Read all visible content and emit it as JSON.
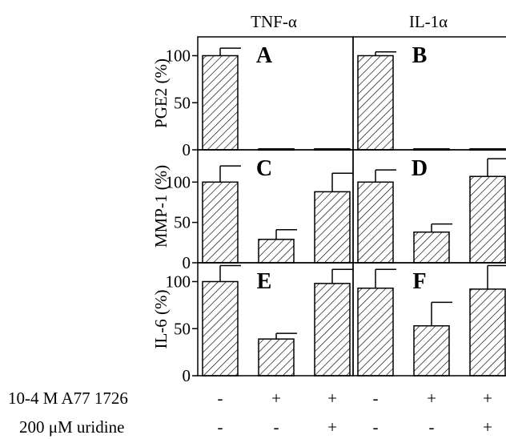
{
  "chart_data": {
    "type": "bar",
    "columns": [
      "TNF-α",
      "IL-1α"
    ],
    "treatments": [
      {
        "label": "10-4 M A77 1726",
        "signs": [
          "-",
          "+",
          "+",
          "-",
          "+",
          "+"
        ]
      },
      {
        "label": "200 μM uridine",
        "signs": [
          "-",
          "-",
          "+",
          "-",
          "-",
          "+"
        ]
      }
    ],
    "rows": [
      {
        "ylabel": "PGE2 (%)",
        "ylim": [
          0,
          120
        ],
        "yticks": [
          0,
          50,
          100
        ],
        "panels": [
          {
            "letter": "A",
            "column": "TNF-α",
            "values": [
              100,
              1,
              1
            ],
            "errors": [
              8,
              0,
              0
            ]
          },
          {
            "letter": "B",
            "column": "IL-1α",
            "values": [
              100,
              1,
              1
            ],
            "errors": [
              4,
              0,
              0
            ]
          }
        ]
      },
      {
        "ylabel": "MMP-1 (%)",
        "ylim": [
          0,
          140
        ],
        "yticks": [
          0,
          50,
          100
        ],
        "panels": [
          {
            "letter": "C",
            "column": "TNF-α",
            "values": [
              100,
              29,
              88
            ],
            "errors": [
              20,
              12,
              23
            ]
          },
          {
            "letter": "D",
            "column": "IL-1α",
            "values": [
              100,
              38,
              107
            ],
            "errors": [
              15,
              10,
              22
            ]
          }
        ]
      },
      {
        "ylabel": "IL-6 (%)",
        "ylim": [
          0,
          120
        ],
        "yticks": [
          0,
          50,
          100
        ],
        "panels": [
          {
            "letter": "E",
            "column": "TNF-α",
            "values": [
              100,
              39,
              98
            ],
            "errors": [
              17,
              6,
              15
            ]
          },
          {
            "letter": "F",
            "column": "IL-1α",
            "values": [
              93,
              53,
              92
            ],
            "errors": [
              20,
              25,
              25
            ]
          }
        ]
      }
    ],
    "grid": false
  }
}
